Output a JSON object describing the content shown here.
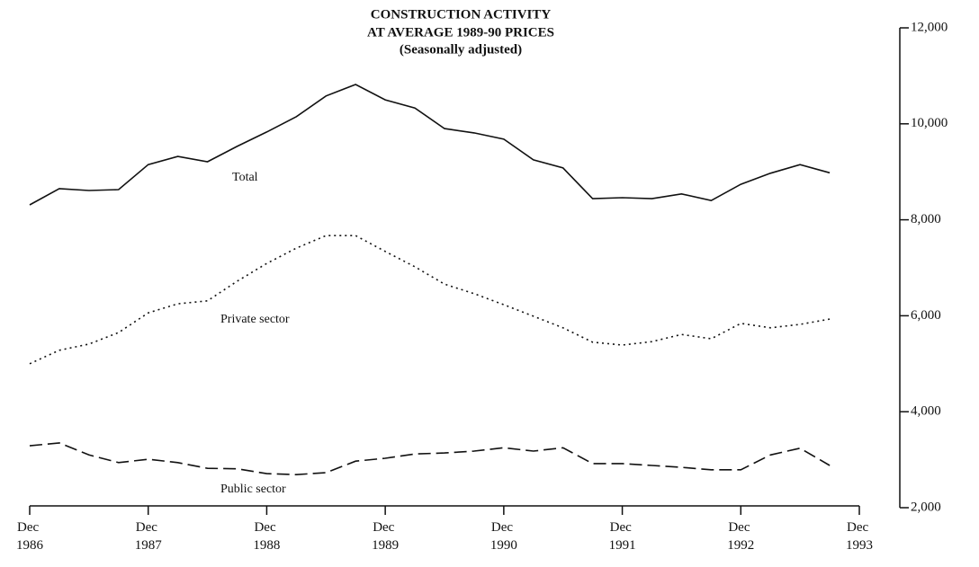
{
  "chart_data": {
    "type": "line",
    "title": [
      "CONSTRUCTION ACTIVITY",
      "AT AVERAGE 1989-90 PRICES",
      "(Seasonally adjusted)"
    ],
    "categories": [
      "Dec 1986",
      null,
      null,
      null,
      "Dec 1987",
      null,
      null,
      null,
      "Dec 1988",
      null,
      null,
      null,
      "Dec 1989",
      null,
      null,
      null,
      "Dec 1990",
      null,
      null,
      null,
      "Dec 1991",
      null,
      null,
      null,
      "Dec 1992",
      null,
      null,
      null,
      "Dec 1993"
    ],
    "series": [
      {
        "name": "Total",
        "color": "#111111",
        "dash": "solid",
        "values": [
          8310,
          8650,
          8610,
          8630,
          9150,
          9320,
          9210,
          9530,
          9830,
          10150,
          10580,
          10820,
          10500,
          10330,
          9900,
          9810,
          9680,
          9250,
          9080,
          8440,
          8460,
          8440,
          8540,
          8400,
          8740,
          8970,
          9150,
          8980,
          null
        ]
      },
      {
        "name": "Private sector",
        "color": "#111111",
        "dash": "dotted",
        "values": [
          5000,
          5280,
          5410,
          5650,
          6060,
          6250,
          6310,
          6720,
          7090,
          7410,
          7670,
          7670,
          7340,
          7020,
          6660,
          6460,
          6230,
          5990,
          5750,
          5450,
          5390,
          5460,
          5610,
          5520,
          5840,
          5750,
          5820,
          5930,
          null
        ]
      },
      {
        "name": "Public sector",
        "color": "#111111",
        "dash": "dashed",
        "values": [
          3290,
          3350,
          3100,
          2940,
          3010,
          2940,
          2820,
          2810,
          2710,
          2690,
          2730,
          2970,
          3030,
          3120,
          3140,
          3180,
          3250,
          3180,
          3250,
          2920,
          2920,
          2880,
          2840,
          2790,
          2790,
          3100,
          3240,
          2880,
          null
        ]
      }
    ],
    "ylim": [
      2000,
      12000
    ],
    "yticks": [
      {
        "value": 2000,
        "label": "2,000"
      },
      {
        "value": 4000,
        "label": "4,000"
      },
      {
        "value": 6000,
        "label": "6,000"
      },
      {
        "value": 8000,
        "label": "8,000"
      },
      {
        "value": 10000,
        "label": "10,000"
      },
      {
        "value": 12000,
        "label": "12,000"
      }
    ],
    "y_axis_side": "right"
  }
}
